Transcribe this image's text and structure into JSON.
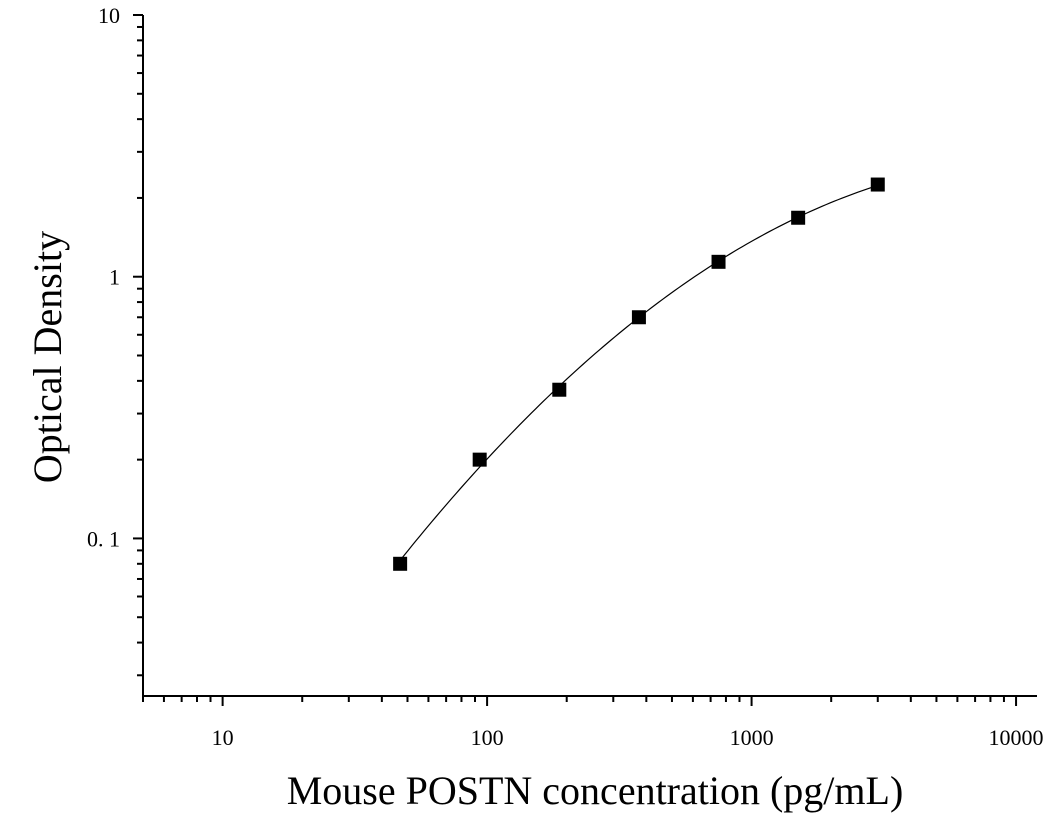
{
  "chart_data": {
    "type": "scatter",
    "xlabel": "Mouse POSTN concentration (pg/mL)",
    "ylabel": "Optical Density",
    "x_scale": "log",
    "y_scale": "log",
    "xlim": [
      5,
      12000
    ],
    "ylim": [
      0.025,
      10
    ],
    "x_ticks": [
      {
        "value": 10,
        "label": "10"
      },
      {
        "value": 100,
        "label": "100"
      },
      {
        "value": 1000,
        "label": "1000"
      },
      {
        "value": 10000,
        "label": "10000"
      }
    ],
    "y_ticks": [
      {
        "value": 0.1,
        "label": "0. 1"
      },
      {
        "value": 1,
        "label": "1"
      },
      {
        "value": 10,
        "label": "10"
      }
    ],
    "series": [
      {
        "x": [
          46.9,
          93.75,
          187.5,
          375,
          750,
          1500,
          3000
        ],
        "y": [
          0.08,
          0.2,
          0.37,
          0.7,
          1.14,
          1.68,
          2.25
        ],
        "marker": "square",
        "color": "#000000"
      }
    ],
    "fit_curve": true,
    "grid": false,
    "legend": "none"
  }
}
